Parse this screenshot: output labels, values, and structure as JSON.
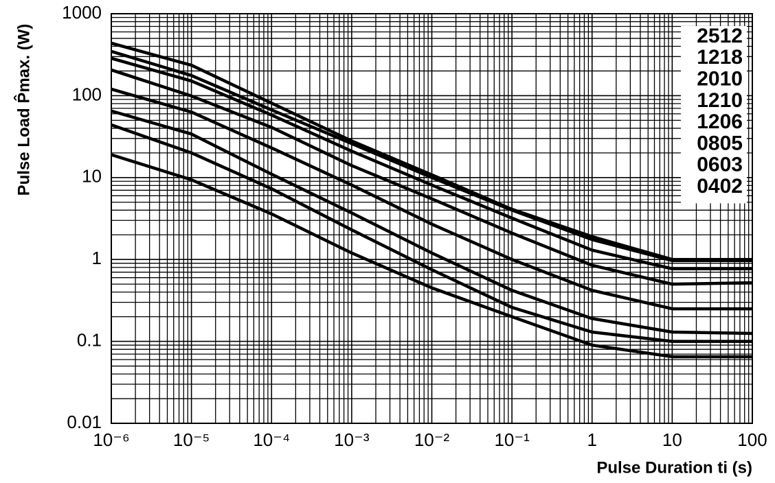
{
  "chart_data": {
    "type": "line",
    "xlabel": "Pulse Duration ti (s)",
    "ylabel": "Pulse Load P̂max. (W)",
    "x": [
      1e-06,
      1e-05,
      0.0001,
      0.001,
      0.01,
      0.1,
      1,
      10,
      100
    ],
    "xscale": "log",
    "yscale": "log",
    "grid": true,
    "legend": "upper right",
    "xlim": [
      1e-06,
      100
    ],
    "ylim": [
      0.01,
      1000
    ],
    "xticks": [
      {
        "value": 1e-06,
        "label": "10⁻⁶"
      },
      {
        "value": 1e-05,
        "label": "10⁻⁵"
      },
      {
        "value": 0.0001,
        "label": "10⁻⁴"
      },
      {
        "value": 0.001,
        "label": "10⁻³"
      },
      {
        "value": 0.01,
        "label": "10⁻²"
      },
      {
        "value": 0.1,
        "label": "10⁻¹"
      },
      1,
      10,
      100
    ],
    "yticks": [
      0.01,
      0.1,
      1,
      10,
      100,
      1000
    ],
    "series": [
      {
        "name": "2512",
        "color": "#000000",
        "values": [
          437,
          235,
          81,
          28,
          10.8,
          4.1,
          1.9,
          1.0,
          1.0
        ]
      },
      {
        "name": "1218",
        "color": "#000000",
        "values": [
          347,
          176,
          67,
          26,
          10,
          4.0,
          1.75,
          0.97,
          0.97
        ]
      },
      {
        "name": "2010",
        "color": "#000000",
        "values": [
          286,
          151,
          58,
          21,
          8.1,
          3.2,
          1.3,
          0.77,
          0.77
        ]
      },
      {
        "name": "1210",
        "color": "#000000",
        "values": [
          206,
          99,
          41,
          14,
          5.5,
          2.1,
          0.85,
          0.5,
          0.52
        ]
      },
      {
        "name": "1206",
        "color": "#000000",
        "values": [
          120,
          63,
          23,
          8.1,
          2.7,
          1.0,
          0.42,
          0.25,
          0.25
        ]
      },
      {
        "name": "0805",
        "color": "#000000",
        "values": [
          65,
          34,
          11,
          3.7,
          1.2,
          0.42,
          0.19,
          0.13,
          0.125
        ]
      },
      {
        "name": "0603",
        "color": "#000000",
        "values": [
          44,
          20,
          7.3,
          2.3,
          0.75,
          0.26,
          0.13,
          0.1,
          0.1
        ]
      },
      {
        "name": "0402",
        "color": "#000000",
        "values": [
          19,
          9.4,
          3.6,
          1.2,
          0.45,
          0.2,
          0.09,
          0.065,
          0.065
        ]
      }
    ]
  }
}
